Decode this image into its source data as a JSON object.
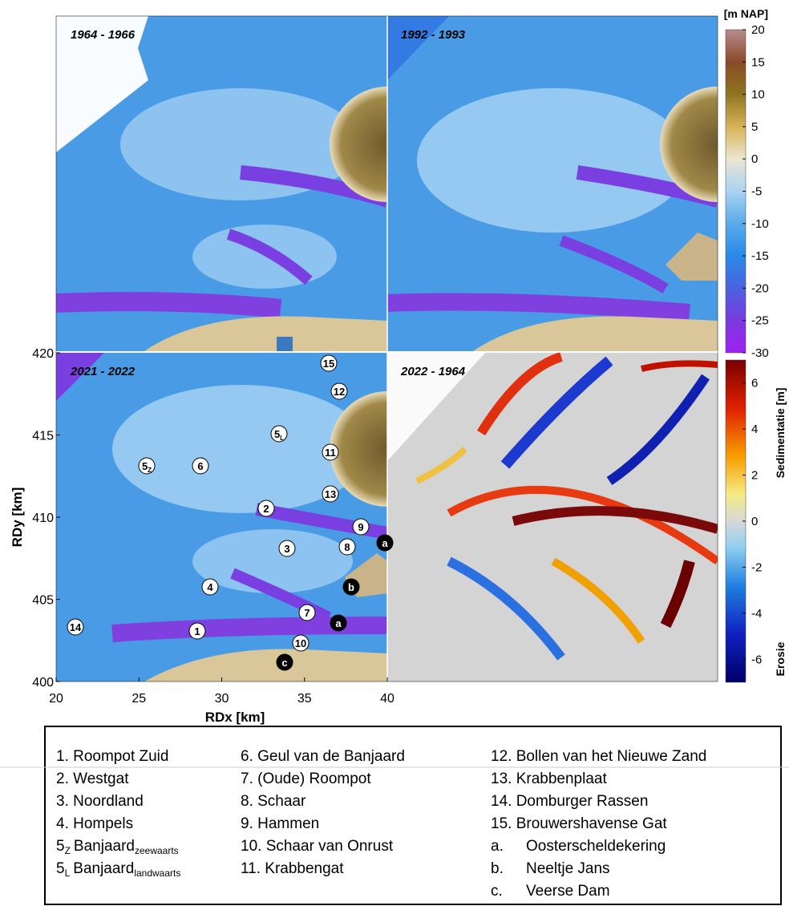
{
  "panels": [
    {
      "title": "1964 - 1966"
    },
    {
      "title": "1992 - 1993"
    },
    {
      "title": "2021 - 2022"
    },
    {
      "title": "2022 - 1964"
    }
  ],
  "x_axis": {
    "label": "RDx [km]",
    "lim": [
      20,
      40
    ],
    "ticks": [
      20,
      25,
      30,
      35,
      40
    ]
  },
  "y_axis": {
    "label": "RDy [km]",
    "lim": [
      400,
      420
    ],
    "ticks": [
      400,
      405,
      410,
      415,
      420
    ]
  },
  "depth_colorbar": {
    "label": "[m NAP]",
    "lim": [
      -30,
      20
    ],
    "ticks": [
      20,
      15,
      10,
      5,
      0,
      -5,
      -10,
      -15,
      -20,
      -25,
      -30
    ]
  },
  "change_colorbar": {
    "label": "Sedimentatie [m]",
    "lower_label": "Erosie",
    "lim": [
      -7,
      7
    ],
    "ticks": [
      6,
      4,
      2,
      0,
      -2,
      -4,
      -6
    ]
  },
  "markers": [
    {
      "label": "15"
    },
    {
      "label": "12"
    },
    {
      "label": "5",
      "sub": "L"
    },
    {
      "label": "11"
    },
    {
      "label": "5",
      "sub": "Z"
    },
    {
      "label": "6"
    },
    {
      "label": "13"
    },
    {
      "label": "2"
    },
    {
      "label": "9"
    },
    {
      "label": "a"
    },
    {
      "label": "3"
    },
    {
      "label": "8"
    },
    {
      "label": "b"
    },
    {
      "label": "4"
    },
    {
      "label": "7"
    },
    {
      "label": "a"
    },
    {
      "label": "14"
    },
    {
      "label": "1"
    },
    {
      "label": "10"
    },
    {
      "label": "c"
    }
  ],
  "legend": {
    "columns": [
      [
        {
          "text": "1. Roompot Zuid"
        },
        {
          "text": "2. Westgat"
        },
        {
          "text": "3. Noordland"
        },
        {
          "text": "4. Hompels"
        },
        {
          "num": "5",
          "num_sub": "Z",
          "name": "Banjaard",
          "name_sub": "zeewaarts"
        },
        {
          "num": "5",
          "num_sub": "L",
          "name": "Banjaard",
          "name_sub": "landwaarts"
        }
      ],
      [
        {
          "text": "6. Geul van de Banjaard"
        },
        {
          "text": "7. (Oude) Roompot"
        },
        {
          "text": "8. Schaar"
        },
        {
          "text": "9. Hammen"
        },
        {
          "text": "10. Schaar van Onrust"
        },
        {
          "text": "11. Krabbengat"
        }
      ],
      [
        {
          "text": "12. Bollen van het Nieuwe Zand"
        },
        {
          "text": "13. Krabbenplaat"
        },
        {
          "text": "14. Domburger Rassen"
        },
        {
          "text": "15. Brouwershavense Gat"
        },
        {
          "key": "a.",
          "name": "Oosterscheldekering"
        },
        {
          "key": "b.",
          "name": "Neeltje Jans"
        },
        {
          "key": "c.",
          "name": "Veerse Dam"
        }
      ]
    ]
  }
}
